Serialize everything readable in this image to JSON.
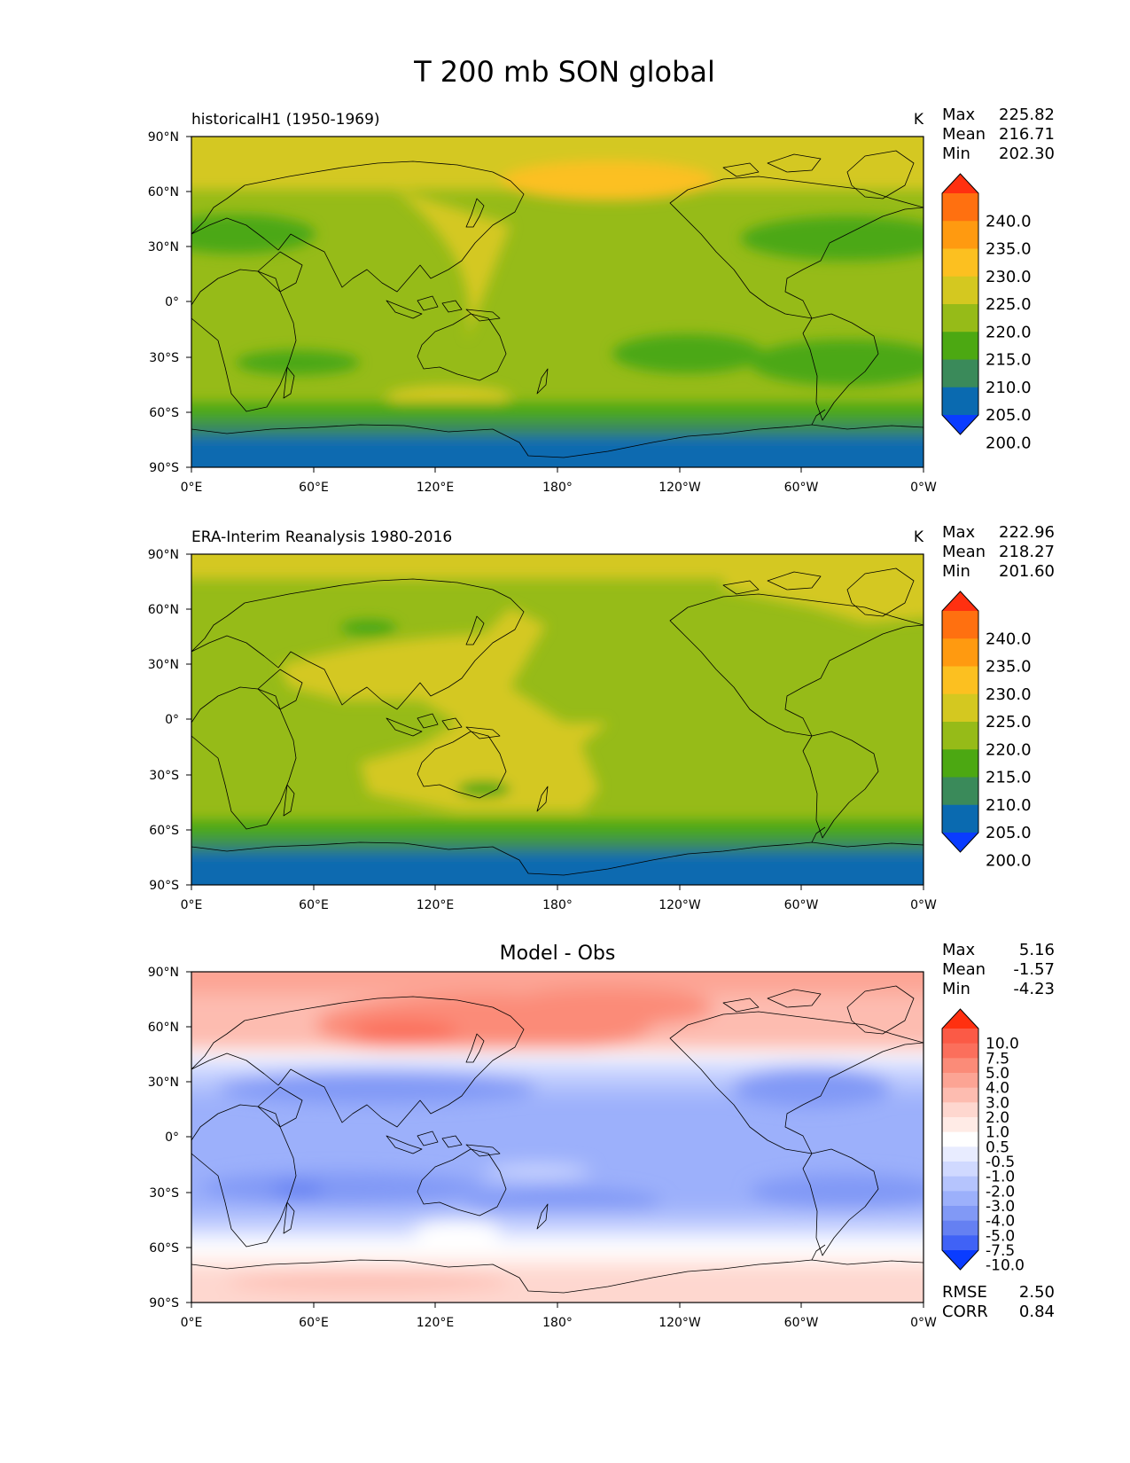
{
  "figure": {
    "title": "T 200 mb SON global",
    "x_tick_labels": [
      "0°E",
      "60°E",
      "120°E",
      "180°",
      "120°W",
      "60°W",
      "0°W"
    ],
    "y_tick_labels": [
      "90°N",
      "60°N",
      "30°N",
      "0°",
      "30°S",
      "60°S",
      "90°S"
    ]
  },
  "panels": [
    {
      "id": "model",
      "left_title": "historicalH1 (1950-1969)",
      "center_title": "",
      "units": "K",
      "stats": [
        {
          "label": "Max",
          "value": "225.82"
        },
        {
          "label": "Mean",
          "value": "216.71"
        },
        {
          "label": "Min",
          "value": "202.30"
        }
      ],
      "colorbar": {
        "labels": [
          "240.0",
          "235.0",
          "230.0",
          "225.0",
          "220.0",
          "215.0",
          "210.0",
          "205.0",
          "200.0"
        ],
        "colors": [
          "#ff3010",
          "#ff7010",
          "#ff9a10",
          "#fcc020",
          "#d4c820",
          "#96bb18",
          "#4ca812",
          "#3a8a5a",
          "#0a6ab0",
          "#0a3cff"
        ],
        "top_color": "#ff3010",
        "bottom_color": "#0a3cff"
      },
      "extra_stats": []
    },
    {
      "id": "obs",
      "left_title": "ERA-Interim Reanalysis 1980-2016",
      "center_title": "",
      "units": "K",
      "stats": [
        {
          "label": "Max",
          "value": "222.96"
        },
        {
          "label": "Mean",
          "value": "218.27"
        },
        {
          "label": "Min",
          "value": "201.60"
        }
      ],
      "colorbar": {
        "labels": [
          "240.0",
          "235.0",
          "230.0",
          "225.0",
          "220.0",
          "215.0",
          "210.0",
          "205.0",
          "200.0"
        ],
        "colors": [
          "#ff3010",
          "#ff7010",
          "#ff9a10",
          "#fcc020",
          "#d4c820",
          "#96bb18",
          "#4ca812",
          "#3a8a5a",
          "#0a6ab0",
          "#0a3cff"
        ],
        "top_color": "#ff3010",
        "bottom_color": "#0a3cff"
      },
      "extra_stats": []
    },
    {
      "id": "diff",
      "left_title": "",
      "center_title": "Model - Obs",
      "units": "",
      "stats": [
        {
          "label": "Max",
          "value": "5.16"
        },
        {
          "label": "Mean",
          "value": "-1.57"
        },
        {
          "label": "Min",
          "value": "-4.23"
        }
      ],
      "colorbar": {
        "labels": [
          "10.0",
          "7.5",
          "5.0",
          "4.0",
          "3.0",
          "2.0",
          "1.0",
          "0.5",
          "-0.5",
          "-1.0",
          "-2.0",
          "-3.0",
          "-4.0",
          "-5.0",
          "-7.5",
          "-10.0"
        ],
        "colors": [
          "#ff3010",
          "#fb5a46",
          "#fb6f5c",
          "#fb8b78",
          "#fca494",
          "#fdbcb0",
          "#fed7cf",
          "#ffebe6",
          "#ffffff",
          "#e8ecff",
          "#d0d9ff",
          "#b5c4fd",
          "#9cb0fb",
          "#8199f6",
          "#6580f2",
          "#4062f6",
          "#0a3cff"
        ],
        "top_color": "#ff3010",
        "bottom_color": "#0a3cff"
      },
      "extra_stats": [
        {
          "label": "RMSE",
          "value": "2.50"
        },
        {
          "label": "CORR",
          "value": "0.84"
        }
      ]
    }
  ]
}
